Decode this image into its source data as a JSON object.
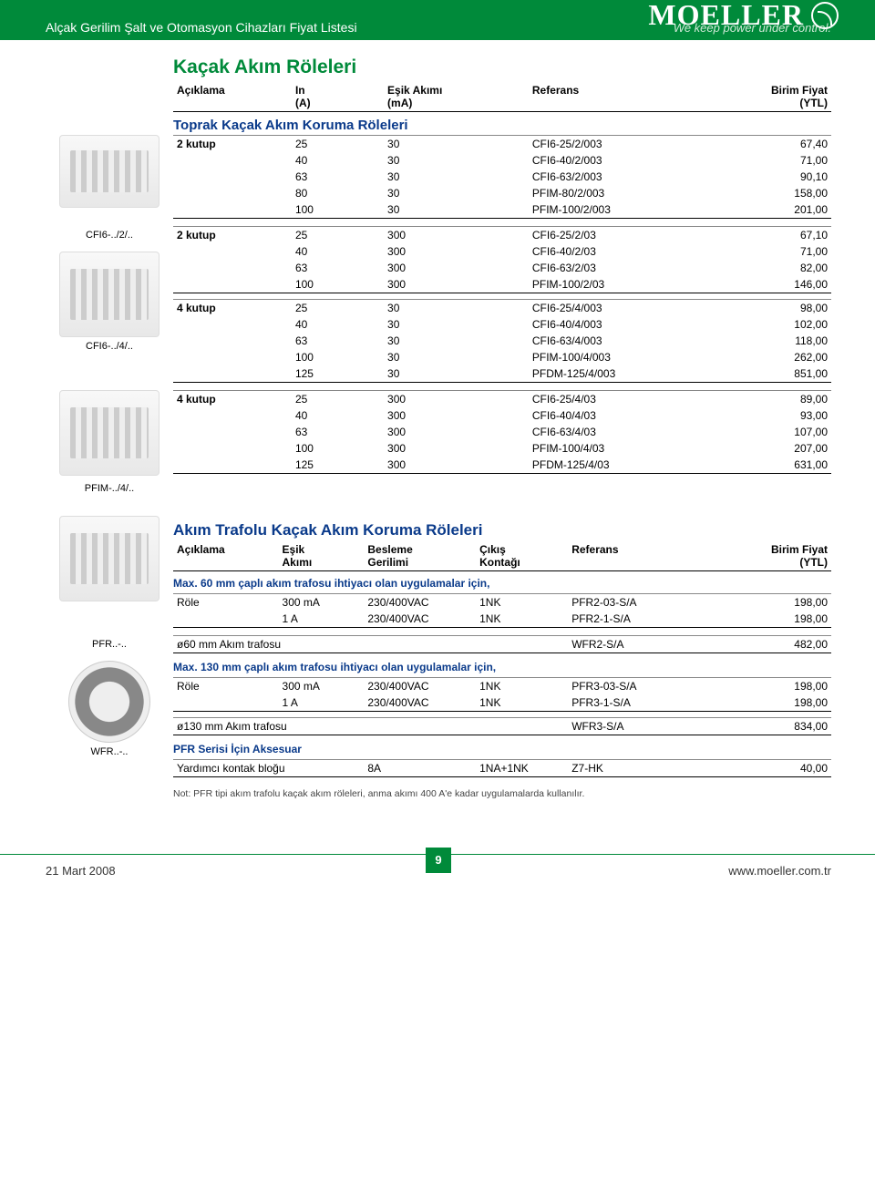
{
  "header": {
    "title": "Alçak Gerilim Şalt ve Otomasyon Cihazları Fiyat Listesi",
    "brand": "MOELLER",
    "tagline": "We keep power under control."
  },
  "section1": {
    "title": "Kaçak Akım Röleleri",
    "columns": {
      "c1": "Açıklama",
      "c2": "In\n(A)",
      "c3": "Eşik Akımı\n(mA)",
      "c4": "Referans",
      "c5": "Birim Fiyat\n(YTL)"
    },
    "subtitle": "Toprak Kaçak Akım Koruma Röleleri",
    "blocks": [
      {
        "label": "2 kutup",
        "rows": [
          {
            "in": "25",
            "ma": "30",
            "ref": "CFI6-25/2/003",
            "price": "67,40"
          },
          {
            "in": "40",
            "ma": "30",
            "ref": "CFI6-40/2/003",
            "price": "71,00"
          },
          {
            "in": "63",
            "ma": "30",
            "ref": "CFI6-63/2/003",
            "price": "90,10"
          },
          {
            "in": "80",
            "ma": "30",
            "ref": "PFIM-80/2/003",
            "price": "158,00"
          },
          {
            "in": "100",
            "ma": "30",
            "ref": "PFIM-100/2/003",
            "price": "201,00"
          }
        ]
      },
      {
        "label": "2 kutup",
        "rows": [
          {
            "in": "25",
            "ma": "300",
            "ref": "CFI6-25/2/03",
            "price": "67,10"
          },
          {
            "in": "40",
            "ma": "300",
            "ref": "CFI6-40/2/03",
            "price": "71,00"
          },
          {
            "in": "63",
            "ma": "300",
            "ref": "CFI6-63/2/03",
            "price": "82,00"
          },
          {
            "in": "100",
            "ma": "300",
            "ref": "PFIM-100/2/03",
            "price": "146,00"
          }
        ]
      },
      {
        "label": "4 kutup",
        "rows": [
          {
            "in": "25",
            "ma": "30",
            "ref": "CFI6-25/4/003",
            "price": "98,00"
          },
          {
            "in": "40",
            "ma": "30",
            "ref": "CFI6-40/4/003",
            "price": "102,00"
          },
          {
            "in": "63",
            "ma": "30",
            "ref": "CFI6-63/4/003",
            "price": "118,00"
          },
          {
            "in": "100",
            "ma": "30",
            "ref": "PFIM-100/4/003",
            "price": "262,00"
          },
          {
            "in": "125",
            "ma": "30",
            "ref": "PFDM-125/4/003",
            "price": "851,00"
          }
        ]
      },
      {
        "label": "4 kutup",
        "rows": [
          {
            "in": "25",
            "ma": "300",
            "ref": "CFI6-25/4/03",
            "price": "89,00"
          },
          {
            "in": "40",
            "ma": "300",
            "ref": "CFI6-40/4/03",
            "price": "93,00"
          },
          {
            "in": "63",
            "ma": "300",
            "ref": "CFI6-63/4/03",
            "price": "107,00"
          },
          {
            "in": "100",
            "ma": "300",
            "ref": "PFIM-100/4/03",
            "price": "207,00"
          },
          {
            "in": "125",
            "ma": "300",
            "ref": "PFDM-125/4/03",
            "price": "631,00"
          }
        ]
      }
    ],
    "captions": {
      "cfi2": "CFI6-../2/..",
      "cfi4": "CFI6-../4/..",
      "pfim4": "PFIM-../4/.."
    }
  },
  "section2": {
    "title": "Akım Trafolu Kaçak Akım Koruma Röleleri",
    "columns": {
      "c1": "Açıklama",
      "c2": "Eşik\nAkımı",
      "c3": "Besleme\nGerilimi",
      "c4": "Çıkış\nKontağı",
      "c5": "Referans",
      "c6": "Birim Fiyat\n(YTL)"
    },
    "note1": "Max. 60 mm çaplı akım trafosu ihtiyacı olan uygulamalar için,",
    "note2": "Max. 130 mm çaplı akım trafosu ihtiyacı olan uygulamalar için,",
    "role_label": "Röle",
    "r1": [
      {
        "akimi": "300 mA",
        "besleme": "230/400VAC",
        "cikis": "1NK",
        "ref": "PFR2-03-S/A",
        "price": "198,00"
      },
      {
        "akimi": "1 A",
        "besleme": "230/400VAC",
        "cikis": "1NK",
        "ref": "PFR2-1-S/A",
        "price": "198,00"
      }
    ],
    "trafo60": {
      "label": "ø60 mm Akım trafosu",
      "ref": "WFR2-S/A",
      "price": "482,00"
    },
    "r2": [
      {
        "akimi": "300 mA",
        "besleme": "230/400VAC",
        "cikis": "1NK",
        "ref": "PFR3-03-S/A",
        "price": "198,00"
      },
      {
        "akimi": "1 A",
        "besleme": "230/400VAC",
        "cikis": "1NK",
        "ref": "PFR3-1-S/A",
        "price": "198,00"
      }
    ],
    "trafo130": {
      "label": "ø130 mm Akım trafosu",
      "ref": "WFR3-S/A",
      "price": "834,00"
    },
    "aksesuar_title": "PFR Serisi İçin Aksesuar",
    "aksesuar": {
      "label": "Yardımcı kontak bloğu",
      "val": "8A",
      "cikis": "1NA+1NK",
      "ref": "Z7-HK",
      "price": "40,00"
    },
    "footnote": "Not: PFR tipi akım trafolu kaçak akım röleleri, anma akımı 400 A'e kadar uygulamalarda kullanılır.",
    "captions": {
      "pfr": "PFR..-..",
      "wfr": "WFR..-.."
    }
  },
  "footer": {
    "date": "21 Mart 2008",
    "page": "9",
    "url": "www.moeller.com.tr"
  }
}
